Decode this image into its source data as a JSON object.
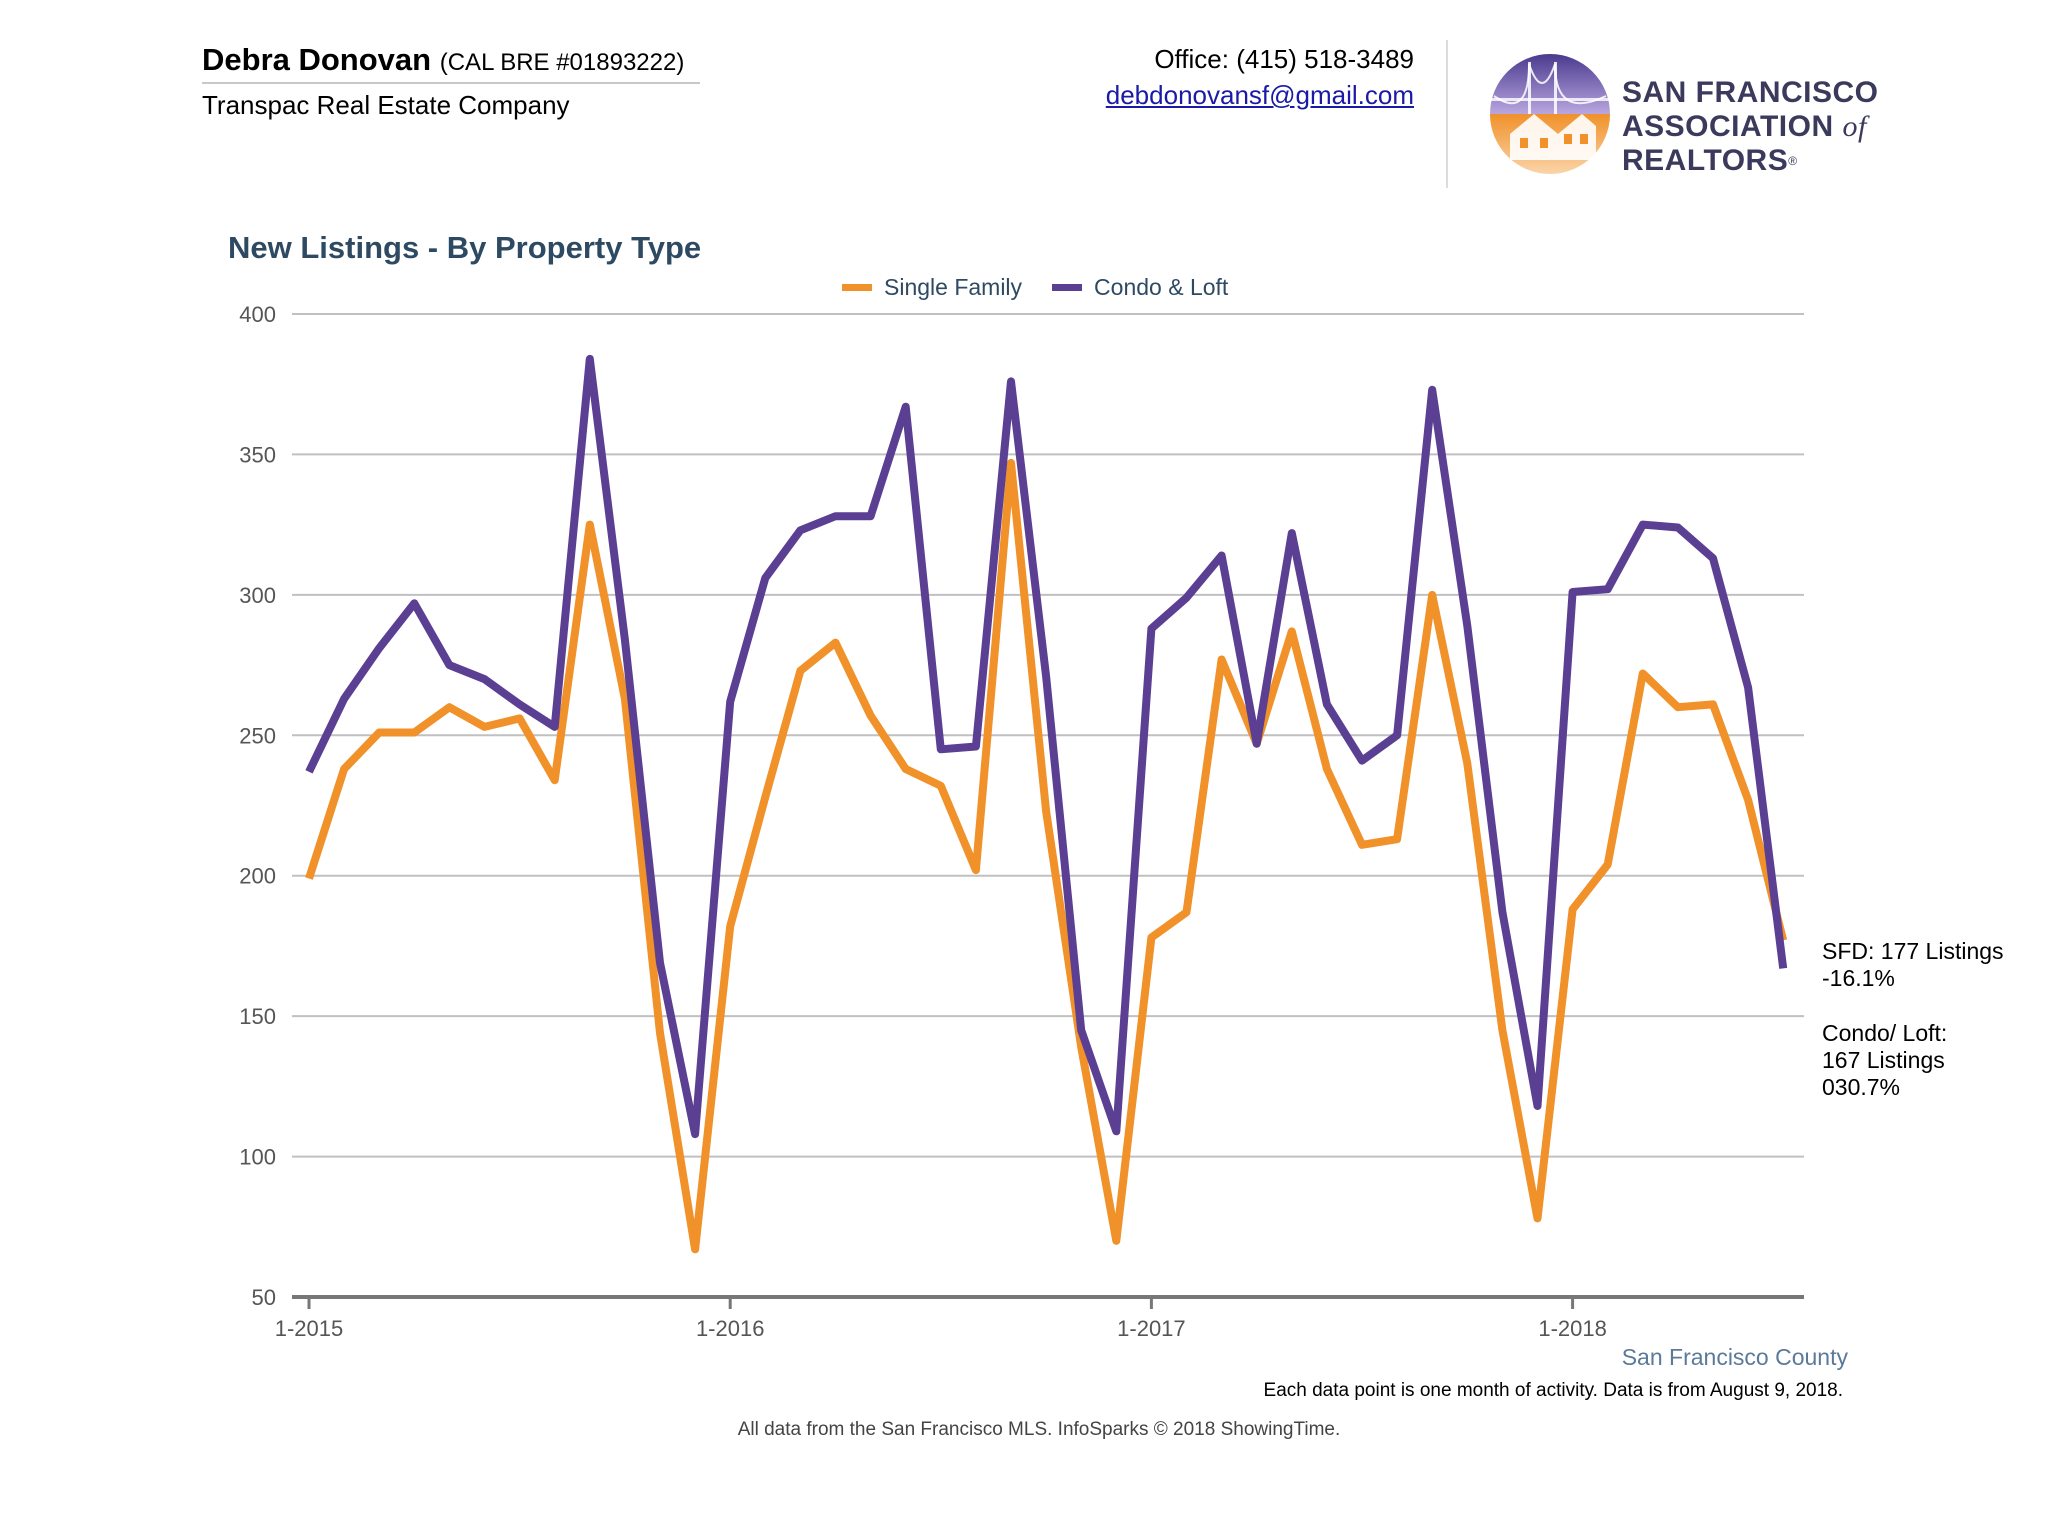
{
  "header": {
    "agent_name": "Debra Donovan",
    "agent_license": "(CAL BRE #01893222)",
    "company": "Transpac Real Estate Company",
    "office_phone": "Office: (415) 518-3489",
    "email": "debdonovansf@gmail.com",
    "logo_line1": "San Francisco",
    "logo_line2_a": "Association",
    "logo_line2_of": "of",
    "logo_line2_b": "Realtors",
    "logo_reg": "®"
  },
  "colors": {
    "single_family": "#f0912a",
    "condo_loft": "#5b3f92",
    "title": "#2e4a63",
    "grid": "#c0c0c0"
  },
  "chart_data": {
    "type": "line",
    "title": "New Listings - By Property Type",
    "xlabel": "",
    "ylabel": "",
    "ylim": [
      50,
      400
    ],
    "yticks": [
      "50",
      "100",
      "150",
      "200",
      "250",
      "300",
      "350",
      "400"
    ],
    "xticks": [
      "1-2015",
      "1-2016",
      "1-2017",
      "1-2018"
    ],
    "grid": true,
    "legend": "top-center",
    "x_start": "1-2015",
    "x_end": "7-2018",
    "series": [
      {
        "name": "Single Family",
        "values": [
          199,
          238,
          251,
          251,
          260,
          253,
          256,
          234,
          325,
          263,
          144,
          67,
          182,
          228,
          273,
          283,
          257,
          238,
          232,
          202,
          347,
          223,
          139,
          70,
          178,
          187,
          277,
          247,
          287,
          238,
          211,
          213,
          300,
          240,
          145,
          78,
          188,
          204,
          272,
          260,
          261,
          227,
          177
        ]
      },
      {
        "name": "Condo & Loft",
        "values": [
          237,
          263,
          281,
          297,
          275,
          270,
          261,
          253,
          384,
          284,
          169,
          108,
          262,
          306,
          323,
          328,
          328,
          367,
          245,
          246,
          376,
          271,
          145,
          109,
          288,
          299,
          314,
          247,
          322,
          261,
          241,
          250,
          373,
          289,
          187,
          118,
          301,
          302,
          325,
          324,
          313,
          267,
          167
        ]
      }
    ],
    "annotations": {
      "sfd_line1": "SFD: 177 Listings",
      "sfd_line2": "-16.1%",
      "condo_line1": "Condo/ Loft:",
      "condo_line2": "167 Listings",
      "condo_line3": "030.7%"
    },
    "region_label": "San Francisco County",
    "note": "Each data point is one month of activity. Data is from August 9, 2018."
  },
  "footer": {
    "credits": "All data from the San Francisco MLS. InfoSparks © 2018 ShowingTime."
  }
}
